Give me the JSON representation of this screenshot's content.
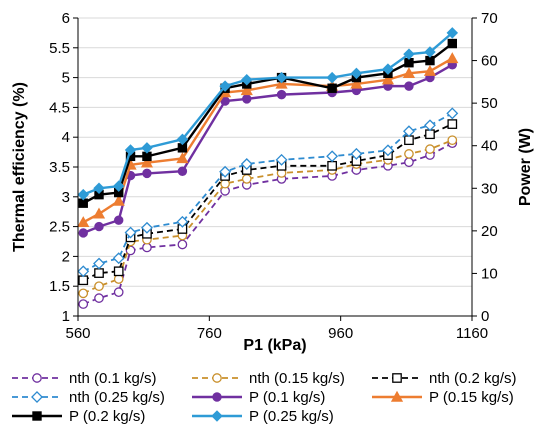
{
  "chart_data": {
    "type": "line",
    "xlabel": "P1 (kPa)",
    "ylabel_left": "Thermal efficiency (%)",
    "ylabel_right": "Power (W)",
    "xlim": [
      560,
      1160
    ],
    "xticks": [
      "560",
      "760",
      "960",
      "1160"
    ],
    "xtick_values": [
      560,
      760,
      960,
      1160
    ],
    "ylim_left": [
      1,
      6
    ],
    "yticks_left": [
      "1",
      "1.5",
      "2",
      "2.5",
      "3",
      "3.5",
      "4",
      "4.5",
      "5",
      "5.5",
      "6"
    ],
    "ytick_values_left": [
      1,
      1.5,
      2,
      2.5,
      3,
      3.5,
      4,
      4.5,
      5,
      5.5,
      6
    ],
    "ylim_right": [
      0,
      70
    ],
    "yticks_right": [
      "0",
      "10",
      "20",
      "30",
      "40",
      "50",
      "60",
      "70"
    ],
    "ytick_values_right": [
      0,
      10,
      20,
      30,
      40,
      50,
      60,
      70
    ],
    "x": [
      568,
      592,
      622,
      640,
      665,
      719,
      784,
      817,
      870,
      947,
      984,
      1032,
      1064,
      1096,
      1130
    ],
    "legend_position": "bottom",
    "series": [
      {
        "name": "nth (0.1 kg/s)",
        "axis": "left",
        "color": "#7030a0",
        "style": "dashed",
        "marker": "open-circle",
        "values": [
          1.2,
          1.3,
          1.4,
          2.1,
          2.15,
          2.2,
          3.1,
          3.2,
          3.3,
          3.35,
          3.45,
          3.52,
          3.58,
          3.7,
          3.9
        ]
      },
      {
        "name": "nth (0.15 kg/s)",
        "axis": "left",
        "color": "#c9902c",
        "style": "dashed",
        "marker": "open-circle",
        "values": [
          1.38,
          1.5,
          1.62,
          2.25,
          2.28,
          2.35,
          3.22,
          3.3,
          3.4,
          3.45,
          3.55,
          3.62,
          3.72,
          3.8,
          3.95
        ]
      },
      {
        "name": "nth (0.2 kg/s)",
        "axis": "left",
        "color": "#000000",
        "style": "dashed",
        "marker": "open-square",
        "values": [
          1.6,
          1.72,
          1.75,
          2.32,
          2.38,
          2.46,
          3.35,
          3.45,
          3.52,
          3.52,
          3.6,
          3.7,
          3.95,
          4.05,
          4.22
        ]
      },
      {
        "name": "nth (0.25 kg/s)",
        "axis": "left",
        "color": "#2e8bd0",
        "style": "dashed",
        "marker": "open-diamond",
        "values": [
          1.75,
          1.88,
          1.97,
          2.4,
          2.48,
          2.58,
          3.42,
          3.55,
          3.62,
          3.68,
          3.72,
          3.78,
          4.1,
          4.2,
          4.4
        ]
      },
      {
        "name": "P (0.1 kg/s)",
        "axis": "right",
        "color": "#7030a0",
        "style": "solid",
        "marker": "filled-circle",
        "values": [
          19.5,
          21,
          22.5,
          33,
          33.5,
          34,
          50.5,
          51,
          52,
          52.5,
          53,
          54,
          54,
          56,
          59
        ]
      },
      {
        "name": "P (0.15 kg/s)",
        "axis": "right",
        "color": "#ed7d31",
        "style": "solid",
        "marker": "filled-triangle",
        "values": [
          22,
          24,
          27,
          35.5,
          36,
          37,
          52.5,
          53,
          54.5,
          54,
          54.5,
          55.5,
          57,
          57.5,
          60.5
        ]
      },
      {
        "name": "P (0.2 kg/s)",
        "axis": "right",
        "color": "#000000",
        "style": "solid",
        "marker": "filled-square",
        "values": [
          26.5,
          28.5,
          29,
          37.5,
          37.5,
          39.5,
          53.5,
          54.5,
          56,
          53.5,
          56,
          57,
          59.5,
          60,
          64
        ]
      },
      {
        "name": "P (0.25 kg/s)",
        "axis": "right",
        "color": "#2e9bd6",
        "style": "solid",
        "marker": "filled-diamond",
        "values": [
          28.5,
          30,
          30.5,
          39,
          39.5,
          41.5,
          54,
          55.5,
          56,
          56,
          57,
          58,
          61.5,
          62,
          66.5
        ]
      }
    ]
  }
}
